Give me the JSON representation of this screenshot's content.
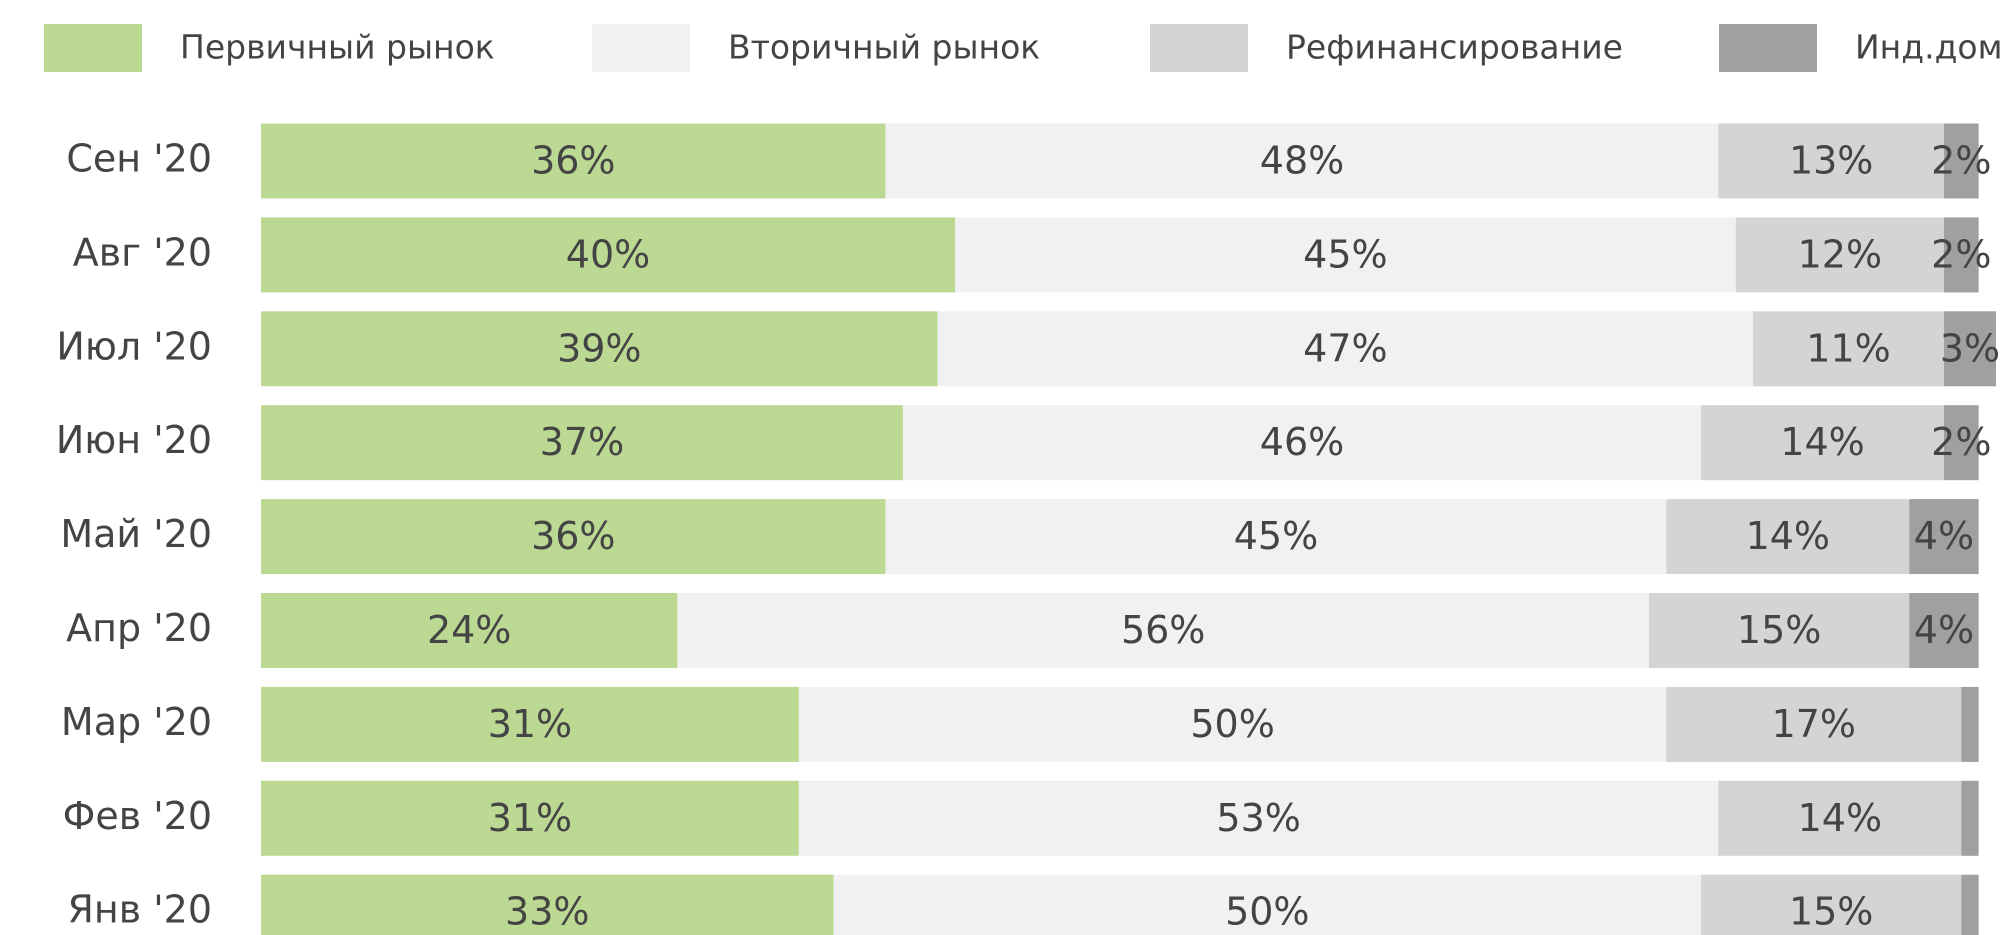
{
  "chart_data": {
    "type": "stacked-bar-horizontal",
    "categories": [
      "Сен '20",
      "Авг '20",
      "Июл '20",
      "Июн '20",
      "Май '20",
      "Апр '20",
      "Мар '20",
      "Фев '20",
      "Янв '20"
    ],
    "xlim": [
      0,
      100
    ],
    "series": [
      {
        "name": "Первичный рынок",
        "color": "#bcd994",
        "values": [
          36,
          40,
          39,
          37,
          36,
          24,
          31,
          31,
          33
        ],
        "value_labels": [
          "36%",
          "40%",
          "39%",
          "37%",
          "36%",
          "24%",
          "31%",
          "31%",
          "33%"
        ]
      },
      {
        "name": "Вторичный рынок",
        "color": "#f1f1f1",
        "values": [
          48,
          45,
          47,
          46,
          45,
          56,
          50,
          53,
          50
        ],
        "value_labels": [
          "48%",
          "45%",
          "47%",
          "46%",
          "45%",
          "56%",
          "50%",
          "53%",
          "50%"
        ]
      },
      {
        "name": "Рефинансирование",
        "color": "#d4d4d4",
        "values": [
          13,
          12,
          11,
          14,
          14,
          15,
          17,
          14,
          15
        ],
        "value_labels": [
          "13%",
          "12%",
          "11%",
          "14%",
          "14%",
          "15%",
          "17%",
          "14%",
          "15%"
        ]
      },
      {
        "name": "Инд.дом",
        "color": "#a0a0a0",
        "values": [
          2,
          2,
          3,
          2,
          4,
          4,
          1,
          1,
          1
        ],
        "value_labels": [
          "2%",
          "2%",
          "3%",
          "2%",
          "4%",
          "4%",
          null,
          null,
          null
        ]
      }
    ]
  }
}
